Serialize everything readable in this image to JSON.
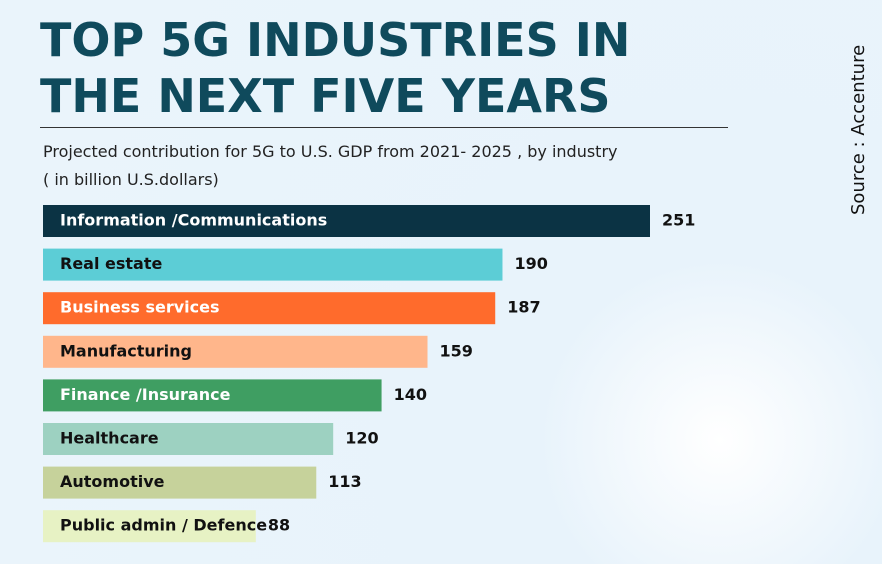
{
  "chart_data": {
    "type": "bar",
    "orientation": "horizontal",
    "title": "TOP 5G INDUSTRIES IN THE NEXT FIVE YEARS",
    "subtitle": "Projected contribution for 5G to U.S. GDP from 2021- 2025 , by industry",
    "units": "( in billion U.S.dollars)",
    "source": "Source : Accenture",
    "categories": [
      "Information /Communications",
      "Real estate",
      "Business services",
      "Manufacturing",
      "Finance /Insurance",
      "Healthcare",
      "Automotive",
      "Public admin / Defence"
    ],
    "values": [
      251,
      190,
      187,
      159,
      140,
      120,
      113,
      88
    ],
    "colors": [
      "#0b3344",
      "#5ccdd6",
      "#ff6b2c",
      "#ffb68b",
      "#3f9e62",
      "#9dd1c1",
      "#c6d29b",
      "#e7f2c4"
    ]
  }
}
